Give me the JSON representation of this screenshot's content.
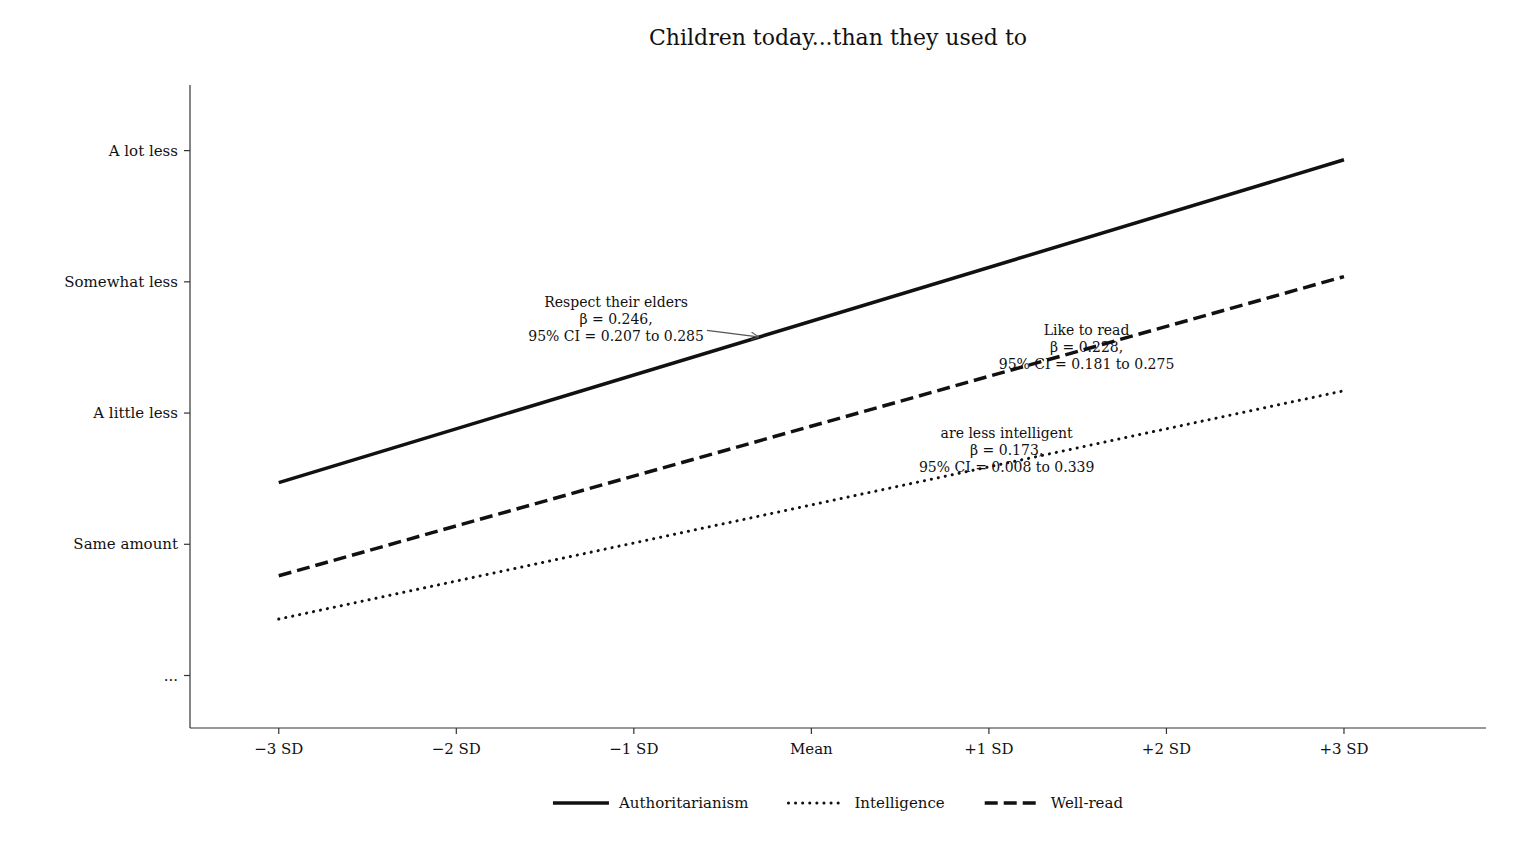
{
  "chart_data": {
    "type": "line",
    "title": "Children today...than they used to",
    "x": [
      -3,
      3
    ],
    "xlim": [
      -3.5,
      3.8
    ],
    "xticks": [
      {
        "value": -3,
        "label": "−3 SD"
      },
      {
        "value": -2,
        "label": "−2 SD"
      },
      {
        "value": -1,
        "label": "−1 SD"
      },
      {
        "value": 0,
        "label": "Mean"
      },
      {
        "value": 1,
        "label": "+1 SD"
      },
      {
        "value": 2,
        "label": "+2 SD"
      },
      {
        "value": 3,
        "label": "+3 SD"
      }
    ],
    "ylim": [
      0.6,
      5.5
    ],
    "yticks": [
      {
        "value": 1,
        "label": "..."
      },
      {
        "value": 2,
        "label": "Same amount"
      },
      {
        "value": 3,
        "label": "A little less"
      },
      {
        "value": 4,
        "label": "Somewhat less"
      },
      {
        "value": 5,
        "label": "A lot less"
      }
    ],
    "series": [
      {
        "name": "Authoritarianism",
        "color": "#111111",
        "line_style": "solid",
        "values": [
          2.47,
          4.93
        ]
      },
      {
        "name": "Intelligence",
        "color": "#111111",
        "line_style": "dotted",
        "values": [
          1.43,
          3.17
        ]
      },
      {
        "name": "Well-read",
        "color": "#111111",
        "line_style": "dashed",
        "values": [
          1.76,
          4.04
        ]
      }
    ],
    "annotations": [
      {
        "text": "Respect their elders\nβ = 0.246,\n95% CI = 0.207 to 0.285",
        "x": -1.1,
        "y": 3.72,
        "target_x": -0.3,
        "target_y": 3.58
      },
      {
        "text": "Like to read\nβ = 0.228,\n95% CI = 0.181 to 0.275",
        "x": 1.55,
        "y": 3.5,
        "target_x": 1.25,
        "target_y": 3.37
      },
      {
        "text": "are less intelligent\nβ = 0.173,\n95% CI = 0.008 to 0.339",
        "x": 1.1,
        "y": 2.72,
        "target_x": 0.9,
        "target_y": 2.56
      }
    ],
    "grid": false,
    "legend": "bottom"
  }
}
